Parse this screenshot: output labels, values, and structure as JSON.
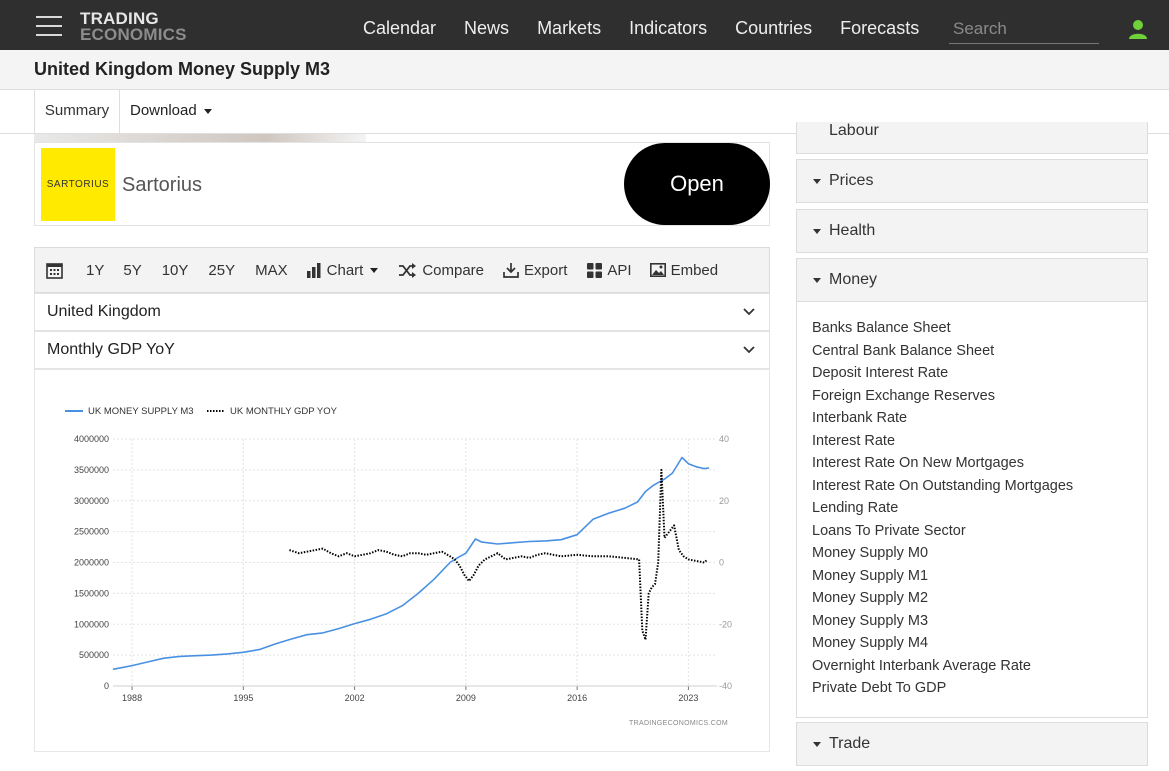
{
  "header": {
    "logo_line1": "TRADING",
    "logo_line2": "ECONOMICS",
    "nav": [
      "Calendar",
      "News",
      "Markets",
      "Indicators",
      "Countries",
      "Forecasts"
    ],
    "search_placeholder": "Search",
    "icons": {
      "menu": "hamburger-icon",
      "user": "user-icon"
    },
    "colors": {
      "bar": "#2f2f2f",
      "user_icon": "#6fd23b"
    }
  },
  "page_title": "United Kingdom Money Supply M3",
  "tabs": {
    "summary": "Summary",
    "download": "Download"
  },
  "ad": {
    "logo_text": "SARTORIUS",
    "name": "Sartorius",
    "button": "Open",
    "colors": {
      "logo_bg": "#ffea00"
    }
  },
  "toolbar": {
    "ranges": [
      "1Y",
      "5Y",
      "10Y",
      "25Y",
      "MAX"
    ],
    "chart": "Chart",
    "compare": "Compare",
    "export": "Export",
    "api": "API",
    "embed": "Embed"
  },
  "selectors": {
    "country": "United Kingdom",
    "compare_indicator": "Monthly GDP YoY"
  },
  "sidebar": {
    "partial_item": "Labour",
    "sections": [
      "Prices",
      "Health",
      "Money",
      "Trade"
    ],
    "money_items": [
      "Banks Balance Sheet",
      "Central Bank Balance Sheet",
      "Deposit Interest Rate",
      "Foreign Exchange Reserves",
      "Interbank Rate",
      "Interest Rate",
      "Interest Rate On New Mortgages",
      "Interest Rate On Outstanding Mortgages",
      "Lending Rate",
      "Loans To Private Sector",
      "Money Supply M0",
      "Money Supply M1",
      "Money Supply M2",
      "Money Supply M3",
      "Money Supply M4",
      "Overnight Interbank Average Rate",
      "Private Debt To GDP"
    ]
  },
  "chart_data": {
    "type": "line",
    "watermark": "TRADINGECONOMICS.COM",
    "legend_position": "top-left",
    "grid": true,
    "x_ticks": [
      "1988",
      "1995",
      "2002",
      "2009",
      "2016",
      "2023"
    ],
    "x_range": [
      1986.8,
      2024.8
    ],
    "y_left": {
      "ticks": [
        0,
        500000,
        1000000,
        1500000,
        2000000,
        2500000,
        3000000,
        3500000,
        4000000
      ],
      "range": [
        0,
        4000000
      ]
    },
    "y_right": {
      "ticks": [
        40,
        20,
        0,
        -20,
        -40
      ],
      "range": [
        -40,
        40
      ]
    },
    "series": [
      {
        "name": "UK MONEY SUPPLY M3",
        "axis": "left",
        "color": "#4a90e2",
        "style": "solid",
        "x": [
          1986.8,
          1988,
          1989,
          1990,
          1991,
          1992,
          1993,
          1994,
          1995,
          1996,
          1997,
          1998,
          1999,
          2000,
          2001,
          2002,
          2003,
          2004,
          2005,
          2006,
          2007,
          2008,
          2008.5,
          2009,
          2009.6,
          2010,
          2011,
          2012,
          2013,
          2014,
          2015,
          2016,
          2017,
          2018,
          2019,
          2019.8,
          2020.3,
          2020.8,
          2021.5,
          2022,
          2022.6,
          2023,
          2023.5,
          2024,
          2024.3
        ],
        "y": [
          270000,
          330000,
          390000,
          450000,
          480000,
          490000,
          500000,
          520000,
          545000,
          590000,
          680000,
          760000,
          830000,
          860000,
          930000,
          1010000,
          1080000,
          1170000,
          1300000,
          1500000,
          1730000,
          2000000,
          2080000,
          2150000,
          2380000,
          2330000,
          2300000,
          2320000,
          2340000,
          2350000,
          2370000,
          2450000,
          2700000,
          2800000,
          2880000,
          2980000,
          3150000,
          3250000,
          3350000,
          3450000,
          3700000,
          3600000,
          3550000,
          3520000,
          3530000
        ]
      },
      {
        "name": "UK MONTHLY GDP YOY",
        "axis": "right",
        "color": "#000000",
        "style": "dotted",
        "x": [
          1997.9,
          1998.5,
          1999,
          1999.5,
          2000,
          2000.5,
          2001,
          2001.5,
          2002,
          2002.5,
          2003,
          2003.5,
          2004,
          2004.5,
          2005,
          2005.5,
          2006,
          2006.5,
          2007,
          2007.5,
          2008,
          2008.3,
          2008.6,
          2008.9,
          2009.2,
          2009.5,
          2009.8,
          2010.2,
          2010.6,
          2011,
          2011.5,
          2012,
          2012.5,
          2013,
          2013.5,
          2014,
          2014.5,
          2015,
          2016,
          2017,
          2018,
          2019,
          2019.9,
          2020.1,
          2020.3,
          2020.5,
          2020.7,
          2020.9,
          2021.1,
          2021.3,
          2021.5,
          2021.8,
          2022.1,
          2022.4,
          2022.7,
          2023,
          2023.5,
          2024,
          2024.2
        ],
        "y": [
          4,
          3,
          3.5,
          4,
          4.5,
          3,
          2,
          3,
          2,
          2.5,
          3,
          4,
          3.5,
          2.5,
          2,
          3,
          3,
          2.5,
          3,
          3.5,
          2,
          1,
          -1,
          -4,
          -6,
          -4,
          -1,
          1,
          2,
          3,
          1,
          1.5,
          2,
          1.5,
          2.5,
          3,
          2.5,
          2,
          2.5,
          2,
          2,
          1.5,
          1,
          -22,
          -25,
          -10,
          -8,
          -7,
          0,
          30,
          8,
          10,
          12,
          4,
          2,
          1,
          0.5,
          0,
          1
        ]
      }
    ]
  }
}
